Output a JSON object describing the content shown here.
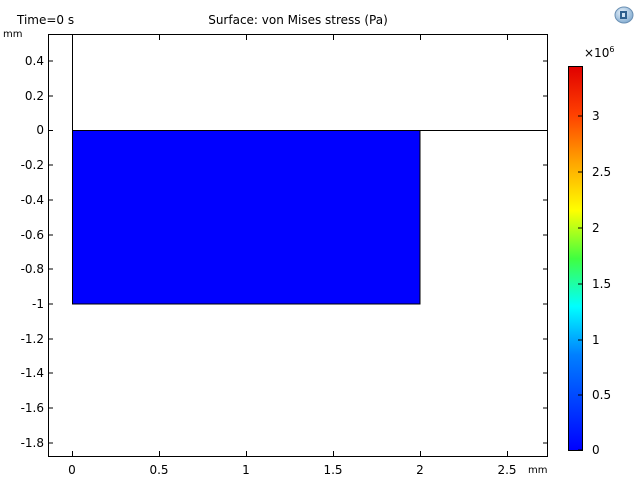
{
  "header": {
    "time_label": "Time=0 s",
    "title": "Surface: von Mises stress (Pa)",
    "logo_icon": "app-logo-icon"
  },
  "axes": {
    "y_unit": "mm",
    "x_unit": "mm",
    "y_ticks": [
      "0.4",
      "0.2",
      "0",
      "-0.2",
      "-0.4",
      "-0.6",
      "-0.8",
      "-1",
      "-1.2",
      "-1.4",
      "-1.6",
      "-1.8"
    ],
    "x_ticks": [
      "0",
      "0.5",
      "1",
      "1.5",
      "2",
      "2.5"
    ]
  },
  "colorbar": {
    "multiplier": "×10",
    "exponent": "6",
    "ticks": [
      "3",
      "2.5",
      "2",
      "1.5",
      "1",
      "0.5",
      "0"
    ]
  },
  "colors": {
    "surface_fill": "#0000ff",
    "background": "#ffffff"
  }
}
